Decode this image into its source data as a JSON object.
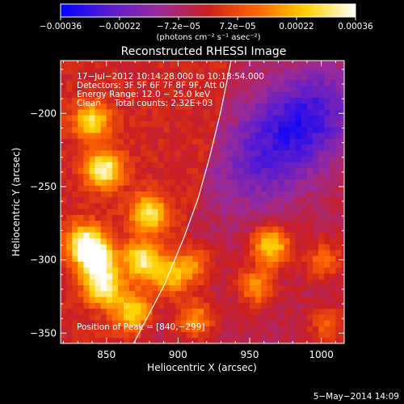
{
  "chart_data": {
    "type": "heatmap",
    "title": "Reconstructed RHESSI Image",
    "xlabel": "Heliocentric X (arcsec)",
    "ylabel": "Heliocentric Y (arcsec)",
    "xlim": [
      818,
      1016
    ],
    "ylim": [
      -357,
      -164
    ],
    "x_ticks": [
      850,
      900,
      950,
      1000
    ],
    "y_ticks": [
      -200,
      -250,
      -300,
      -350
    ],
    "x_tick_labels": [
      "850",
      "900",
      "950",
      "1000"
    ],
    "y_tick_labels": [
      "−200",
      "−250",
      "−300",
      "−350"
    ],
    "colorbar": {
      "range": [
        -0.00036,
        0.00036
      ],
      "tick_labels": [
        "−0.00036",
        "−0.00022",
        "−7.2e−05",
        "7.2e−05",
        "0.00022",
        "0.00036"
      ],
      "unit_label": "(photons cm⁻² s⁻¹ asec⁻²)",
      "colors": [
        "#0000ff",
        "#5a1ccf",
        "#9a2b9a",
        "#cc1f1f",
        "#ff6600",
        "#ffd200",
        "#ffffff"
      ]
    },
    "annotations": {
      "time_range": "17−Jul−2012 10:14:28.000 to 10:18:54.000",
      "detectors": "Detectors: 3F 5F 6F 7F 8F 9F, Att 0",
      "energy": "Energy Range: 12.0 − 25.0 keV",
      "clean_counts": "Clean     Total counts: 2.32E+03",
      "peak": "Position of Peak = [840,−299]"
    },
    "limb_curve": [
      [
        869,
        -357
      ],
      [
        890,
        -318
      ],
      [
        904,
        -285
      ],
      [
        914,
        -258
      ],
      [
        922,
        -230
      ],
      [
        930,
        -198
      ],
      [
        937,
        -164
      ]
    ],
    "sources": [
      {
        "x": 840,
        "y": -205,
        "intensity": 0.75
      },
      {
        "x": 848,
        "y": -238,
        "intensity": 0.95
      },
      {
        "x": 843,
        "y": -299,
        "intensity": 1.0
      },
      {
        "x": 835,
        "y": -288,
        "intensity": 0.85
      },
      {
        "x": 848,
        "y": -318,
        "intensity": 0.9
      },
      {
        "x": 875,
        "y": -300,
        "intensity": 0.85
      },
      {
        "x": 880,
        "y": -268,
        "intensity": 0.8
      },
      {
        "x": 868,
        "y": -335,
        "intensity": 0.7
      },
      {
        "x": 895,
        "y": -312,
        "intensity": 0.6
      },
      {
        "x": 910,
        "y": -303,
        "intensity": 0.5
      },
      {
        "x": 965,
        "y": -290,
        "intensity": 0.85
      },
      {
        "x": 955,
        "y": -318,
        "intensity": 0.55
      },
      {
        "x": 1002,
        "y": -300,
        "intensity": 0.4
      },
      {
        "x": 1005,
        "y": -345,
        "intensity": 0.35
      },
      {
        "x": 912,
        "y": -340,
        "intensity": 0.55
      }
    ],
    "cold_regions": [
      {
        "x": 975,
        "y": -215,
        "intensity": 0.9
      },
      {
        "x": 1000,
        "y": -195,
        "intensity": 0.8
      },
      {
        "x": 950,
        "y": -240,
        "intensity": 0.6
      }
    ]
  },
  "footer": {
    "timestamp": "5−May−2014 14:09"
  }
}
